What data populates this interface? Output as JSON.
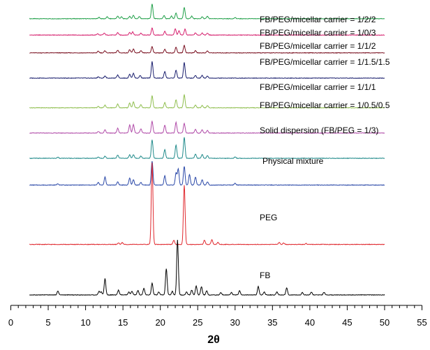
{
  "chart_data": {
    "type": "line",
    "xlabel": "2θ",
    "ylabel": "",
    "xlim": [
      0,
      55
    ],
    "xticks": [
      0,
      5,
      10,
      15,
      20,
      25,
      30,
      35,
      40,
      45,
      50,
      55
    ],
    "x_range_of_data": [
      2.5,
      50
    ],
    "grid": false,
    "legend": "none",
    "series": [
      {
        "name": "FB/PEG/micellar carrier = 1/2/2",
        "color": "#22a04a",
        "baseline_offset": 9.3,
        "scale": 0.9,
        "peaks": [
          [
            11.8,
            0.05
          ],
          [
            12.9,
            0.07
          ],
          [
            14.3,
            0.1
          ],
          [
            14.8,
            0.07
          ],
          [
            15.9,
            0.09
          ],
          [
            16.4,
            0.13
          ],
          [
            17.2,
            0.08
          ],
          [
            18.9,
            0.55
          ],
          [
            20.5,
            0.12
          ],
          [
            21.5,
            0.1
          ],
          [
            22.1,
            0.22
          ],
          [
            23.2,
            0.42
          ],
          [
            24.2,
            0.1
          ],
          [
            25.6,
            0.07
          ],
          [
            26.3,
            0.09
          ],
          [
            30.0,
            0.04
          ]
        ]
      },
      {
        "name": "FB/PEG/micellar carrier = 1/0/3",
        "color": "#d6206e",
        "baseline_offset": 8.75,
        "scale": 0.9,
        "peaks": [
          [
            11.6,
            0.05
          ],
          [
            12.5,
            0.07
          ],
          [
            14.3,
            0.09
          ],
          [
            15.9,
            0.1
          ],
          [
            16.3,
            0.12
          ],
          [
            17.4,
            0.07
          ],
          [
            18.9,
            0.26
          ],
          [
            20.6,
            0.14
          ],
          [
            22.0,
            0.24
          ],
          [
            22.5,
            0.16
          ],
          [
            23.3,
            0.22
          ],
          [
            24.7,
            0.08
          ],
          [
            25.6,
            0.08
          ],
          [
            26.3,
            0.07
          ]
        ]
      },
      {
        "name": "FB/PEG/micellar carrier = 1/1/2",
        "color": "#7a1020",
        "baseline_offset": 8.15,
        "scale": 0.9,
        "peaks": [
          [
            11.7,
            0.06
          ],
          [
            12.6,
            0.08
          ],
          [
            14.3,
            0.1
          ],
          [
            15.9,
            0.12
          ],
          [
            16.4,
            0.14
          ],
          [
            17.4,
            0.08
          ],
          [
            18.9,
            0.24
          ],
          [
            20.6,
            0.13
          ],
          [
            22.1,
            0.22
          ],
          [
            23.2,
            0.28
          ],
          [
            24.7,
            0.08
          ],
          [
            26.3,
            0.07
          ]
        ]
      },
      {
        "name": "FB/PEG/micellar carrier = 1/1.5/1.5",
        "color": "#1a1f6e",
        "baseline_offset": 7.3,
        "scale": 0.9,
        "peaks": [
          [
            11.7,
            0.05
          ],
          [
            12.6,
            0.08
          ],
          [
            14.3,
            0.12
          ],
          [
            15.9,
            0.15
          ],
          [
            16.4,
            0.18
          ],
          [
            17.3,
            0.1
          ],
          [
            18.9,
            0.62
          ],
          [
            20.6,
            0.25
          ],
          [
            22.1,
            0.3
          ],
          [
            23.2,
            0.58
          ],
          [
            24.7,
            0.1
          ],
          [
            25.6,
            0.1
          ],
          [
            26.3,
            0.08
          ]
        ]
      },
      {
        "name": "FB/PEG/micellar carrier = 1/1/1",
        "color": "#8fbe4e",
        "baseline_offset": 6.3,
        "scale": 0.9,
        "peaks": [
          [
            11.7,
            0.05
          ],
          [
            12.6,
            0.1
          ],
          [
            14.3,
            0.14
          ],
          [
            15.9,
            0.18
          ],
          [
            16.4,
            0.22
          ],
          [
            17.4,
            0.12
          ],
          [
            18.9,
            0.45
          ],
          [
            20.6,
            0.2
          ],
          [
            22.1,
            0.3
          ],
          [
            23.2,
            0.48
          ],
          [
            24.7,
            0.1
          ],
          [
            25.6,
            0.09
          ],
          [
            26.3,
            0.08
          ]
        ]
      },
      {
        "name": "FB/PEG/micellar carrier = 1/0.5/0.5",
        "color": "#b04aa8",
        "baseline_offset": 5.45,
        "scale": 0.9,
        "peaks": [
          [
            11.7,
            0.06
          ],
          [
            12.6,
            0.12
          ],
          [
            14.3,
            0.18
          ],
          [
            15.9,
            0.3
          ],
          [
            16.4,
            0.32
          ],
          [
            17.4,
            0.16
          ],
          [
            18.9,
            0.44
          ],
          [
            20.6,
            0.3
          ],
          [
            22.1,
            0.4
          ],
          [
            23.2,
            0.36
          ],
          [
            24.7,
            0.14
          ],
          [
            25.6,
            0.12
          ],
          [
            26.3,
            0.1
          ]
        ]
      },
      {
        "name": "Solid dispersion (FB/PEG = 1/3)",
        "color": "#1f8a8a",
        "baseline_offset": 4.6,
        "scale": 0.9,
        "peaks": [
          [
            6.3,
            0.04
          ],
          [
            11.7,
            0.05
          ],
          [
            12.6,
            0.08
          ],
          [
            14.3,
            0.12
          ],
          [
            15.9,
            0.13
          ],
          [
            16.4,
            0.14
          ],
          [
            17.4,
            0.08
          ],
          [
            18.9,
            0.7
          ],
          [
            20.6,
            0.32
          ],
          [
            22.1,
            0.5
          ],
          [
            23.2,
            0.78
          ],
          [
            24.7,
            0.16
          ],
          [
            25.6,
            0.14
          ],
          [
            26.3,
            0.1
          ],
          [
            30.0,
            0.05
          ]
        ]
      },
      {
        "name": "Physical mixture",
        "color": "#2a48a8",
        "baseline_offset": 3.7,
        "scale": 0.9,
        "peaks": [
          [
            6.3,
            0.05
          ],
          [
            11.7,
            0.1
          ],
          [
            12.6,
            0.3
          ],
          [
            14.3,
            0.12
          ],
          [
            15.9,
            0.26
          ],
          [
            16.4,
            0.2
          ],
          [
            17.4,
            0.1
          ],
          [
            18.9,
            0.9
          ],
          [
            20.6,
            0.35
          ],
          [
            22.1,
            0.45
          ],
          [
            22.4,
            0.6
          ],
          [
            23.2,
            0.7
          ],
          [
            23.9,
            0.4
          ],
          [
            24.7,
            0.3
          ],
          [
            25.6,
            0.2
          ],
          [
            26.3,
            0.12
          ],
          [
            30.0,
            0.06
          ]
        ]
      },
      {
        "name": "PEG",
        "color": "#e0282e",
        "baseline_offset": 1.7,
        "scale": 1,
        "peaks": [
          [
            14.4,
            0.05
          ],
          [
            14.9,
            0.06
          ],
          [
            18.9,
            2.75
          ],
          [
            21.8,
            0.14
          ],
          [
            23.2,
            2.0
          ],
          [
            25.9,
            0.14
          ],
          [
            26.9,
            0.16
          ],
          [
            27.7,
            0.07
          ],
          [
            35.9,
            0.07
          ],
          [
            36.5,
            0.05
          ],
          [
            39.5,
            0.03
          ]
        ]
      },
      {
        "name": "FB",
        "color": "#000000",
        "baseline_offset": 0,
        "scale": 1,
        "peaks": [
          [
            6.3,
            0.13
          ],
          [
            11.8,
            0.12
          ],
          [
            12.1,
            0.1
          ],
          [
            12.6,
            0.55
          ],
          [
            14.4,
            0.16
          ],
          [
            15.8,
            0.1
          ],
          [
            16.2,
            0.12
          ],
          [
            17.0,
            0.15
          ],
          [
            17.8,
            0.22
          ],
          [
            18.9,
            0.4
          ],
          [
            19.8,
            0.1
          ],
          [
            20.8,
            0.88
          ],
          [
            21.6,
            0.12
          ],
          [
            22.3,
            1.85
          ],
          [
            23.5,
            0.1
          ],
          [
            24.2,
            0.16
          ],
          [
            24.8,
            0.3
          ],
          [
            25.5,
            0.28
          ],
          [
            26.2,
            0.14
          ],
          [
            28.1,
            0.08
          ],
          [
            29.5,
            0.08
          ],
          [
            30.6,
            0.14
          ],
          [
            33.1,
            0.28
          ],
          [
            33.9,
            0.1
          ],
          [
            35.6,
            0.1
          ],
          [
            36.9,
            0.24
          ],
          [
            39.0,
            0.08
          ],
          [
            40.2,
            0.1
          ],
          [
            41.9,
            0.09
          ]
        ]
      }
    ]
  }
}
